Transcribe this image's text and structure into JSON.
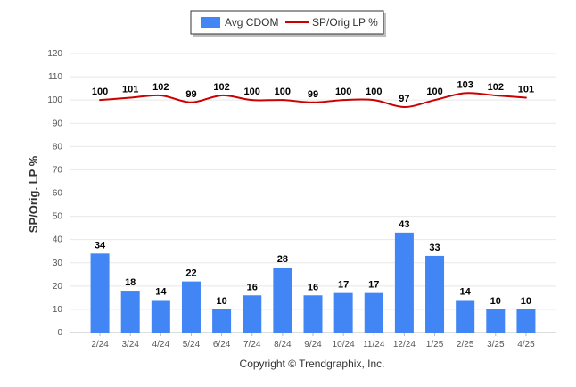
{
  "chart_data": {
    "type": "bar",
    "ylabel": "SP/Orig. LP %",
    "ylim": [
      0,
      120
    ],
    "ytick_step": 10,
    "grid": true,
    "legend_position": "top-center",
    "categories": [
      "2/24",
      "3/24",
      "4/24",
      "5/24",
      "6/24",
      "7/24",
      "8/24",
      "9/24",
      "10/24",
      "11/24",
      "12/24",
      "1/25",
      "2/25",
      "3/25",
      "4/25"
    ],
    "series": [
      {
        "name": "Avg CDOM",
        "type": "bar",
        "color": "#4285f4",
        "values": [
          34,
          18,
          14,
          22,
          10,
          16,
          28,
          16,
          17,
          17,
          43,
          33,
          14,
          10,
          10
        ]
      },
      {
        "name": "SP/Orig LP %",
        "type": "line",
        "color": "#cc0000",
        "values": [
          100,
          101,
          102,
          99,
          102,
          100,
          100,
          99,
          100,
          100,
          97,
          100,
          103,
          102,
          101
        ]
      }
    ]
  },
  "footer": {
    "copyright": "Copyright © Trendgraphix, Inc."
  }
}
